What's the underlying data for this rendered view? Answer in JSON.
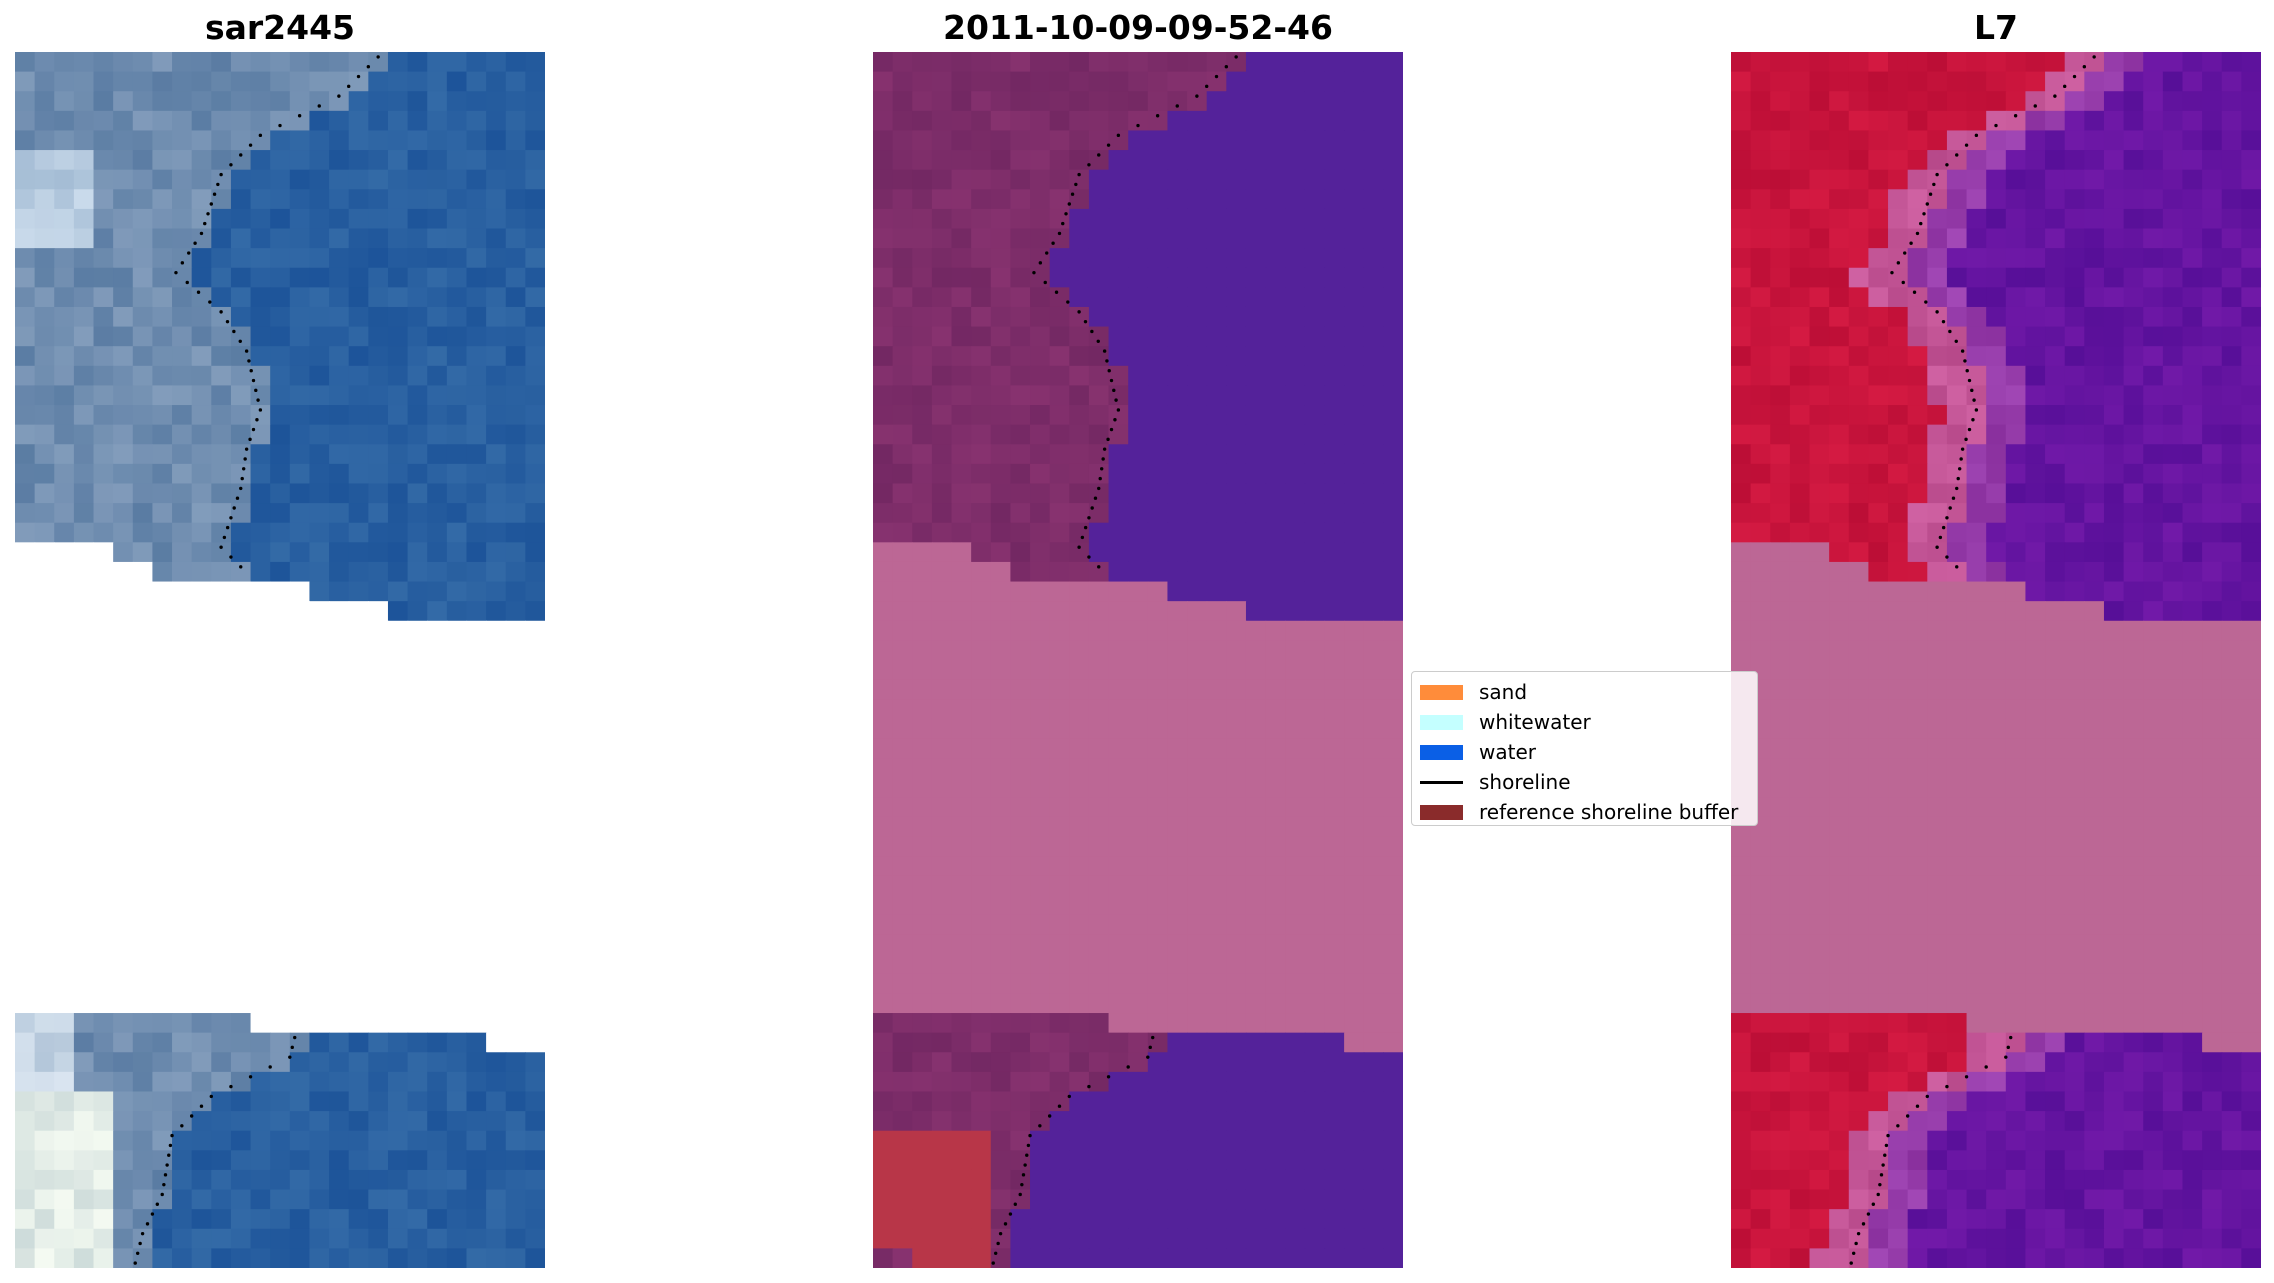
{
  "panels": [
    {
      "title": "sar2445",
      "kind": "rgb"
    },
    {
      "title": "2011-10-09-09-52-46",
      "kind": "classified"
    },
    {
      "title": "L7",
      "kind": "mndwi"
    }
  ],
  "legend": {
    "items": [
      {
        "label": "sand",
        "type": "patch",
        "color": "#ff8c3a"
      },
      {
        "label": "whitewater",
        "type": "patch",
        "color": "#c4ffff"
      },
      {
        "label": "water",
        "type": "patch",
        "color": "#0a5fe6"
      },
      {
        "label": "shoreline",
        "type": "line",
        "color": "#000000"
      },
      {
        "label": "reference shoreline buffer",
        "type": "patch",
        "color": "#8a2b2b"
      }
    ]
  },
  "colors": {
    "nodata_rgb": "#ffffff",
    "nodata_overlay": "#bc6795",
    "class_water": "#54229a",
    "class_buffer": "#b83648",
    "shoreline": "#000000"
  },
  "chart_data": [
    {
      "type": "heatmap",
      "title": "sar2445",
      "description_values": "RGB satellite composite, pixel grid with shoreline points",
      "legend": []
    },
    {
      "type": "heatmap",
      "title": "2011-10-09-09-52-46",
      "categories": [
        "sand",
        "whitewater",
        "water",
        "shoreline",
        "reference shoreline buffer"
      ],
      "legend_placement": "right"
    },
    {
      "type": "heatmap",
      "title": "L7",
      "legend": []
    }
  ]
}
